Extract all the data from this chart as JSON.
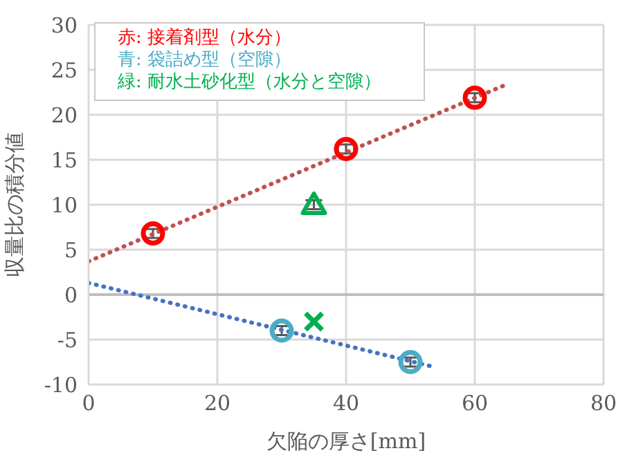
{
  "chart_data": {
    "type": "scatter",
    "xlabel": "欠陥の厚さ[mm]",
    "ylabel": "収量比の積分値",
    "xlim": [
      0,
      80
    ],
    "xticks": [
      0,
      20,
      40,
      60,
      80
    ],
    "ylim": [
      -10,
      30
    ],
    "yticks": [
      -10,
      -5,
      0,
      5,
      10,
      15,
      20,
      25,
      30
    ],
    "grid": true,
    "legend": "top left",
    "series": [
      {
        "name": "赤: 接着剤型（水分）",
        "color": "#ff0000",
        "marker": "circle",
        "x": [
          10,
          40,
          60
        ],
        "values": [
          6.8,
          16.2,
          21.9
        ],
        "errors": [
          0.5,
          0.5,
          0.5
        ]
      },
      {
        "name": "青: 袋詰め型（空隙）",
        "color": "#4bacc6",
        "marker": "circle",
        "x": [
          30,
          50
        ],
        "values": [
          -4,
          -7.5
        ],
        "errors": [
          0.5,
          0.5
        ]
      },
      {
        "name": "緑: 耐水土砂化型（水分と空隙）",
        "color": "#00b050",
        "marker": "triangle",
        "x": [
          35
        ],
        "values": [
          10
        ],
        "errors": [
          0.5
        ]
      },
      {
        "color": "#00b050",
        "marker": "cross",
        "x": [
          35
        ],
        "values": [
          -3
        ]
      },
      {
        "type": "line",
        "color": "#c0504d",
        "line_style": "dotted",
        "x": [
          0,
          65
        ],
        "values": [
          3.7,
          23.4
        ]
      },
      {
        "type": "line",
        "color": "#4472c4",
        "line_style": "dotted",
        "x": [
          0,
          54
        ],
        "values": [
          1.3,
          -8.1
        ]
      }
    ]
  }
}
